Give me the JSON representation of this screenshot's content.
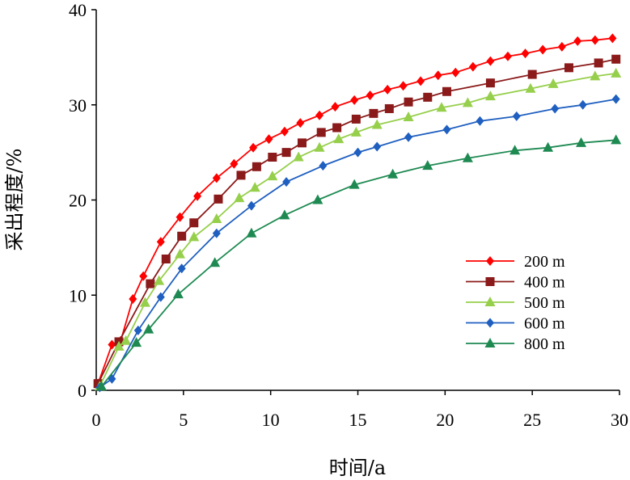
{
  "chart_data": {
    "type": "line",
    "xlabel": "时间/a",
    "ylabel": "采出程度/%",
    "xlim": [
      0,
      30
    ],
    "ylim": [
      0,
      40
    ],
    "xticks": [
      "0",
      "5",
      "10",
      "15",
      "20",
      "25",
      "30"
    ],
    "yticks": [
      "0",
      "10",
      "20",
      "30",
      "40"
    ],
    "grid": false,
    "legend_position": "right",
    "series": [
      {
        "name": "200 m",
        "color": "#ff0000",
        "marker": "diamond",
        "points": [
          [
            0.1,
            0.7
          ],
          [
            0.9,
            4.8
          ],
          [
            1.4,
            5.2
          ],
          [
            2.1,
            9.6
          ],
          [
            2.7,
            12.0
          ],
          [
            3.7,
            15.6
          ],
          [
            4.8,
            18.2
          ],
          [
            5.8,
            20.4
          ],
          [
            6.9,
            22.3
          ],
          [
            7.9,
            23.8
          ],
          [
            9.0,
            25.5
          ],
          [
            9.9,
            26.4
          ],
          [
            10.8,
            27.2
          ],
          [
            11.7,
            28.1
          ],
          [
            12.8,
            28.9
          ],
          [
            13.7,
            29.8
          ],
          [
            14.8,
            30.5
          ],
          [
            15.7,
            31.0
          ],
          [
            16.7,
            31.6
          ],
          [
            17.6,
            32.0
          ],
          [
            18.6,
            32.5
          ],
          [
            19.6,
            33.1
          ],
          [
            20.6,
            33.4
          ],
          [
            21.6,
            34.0
          ],
          [
            22.6,
            34.6
          ],
          [
            23.6,
            35.1
          ],
          [
            24.6,
            35.4
          ],
          [
            25.6,
            35.8
          ],
          [
            26.7,
            36.1
          ],
          [
            27.6,
            36.7
          ],
          [
            28.6,
            36.8
          ],
          [
            29.6,
            37.0
          ]
        ]
      },
      {
        "name": "400 m",
        "color": "#8b1a1a",
        "marker": "square",
        "points": [
          [
            0.1,
            0.7
          ],
          [
            1.3,
            5.1
          ],
          [
            3.1,
            11.2
          ],
          [
            4.0,
            13.8
          ],
          [
            4.9,
            16.2
          ],
          [
            5.6,
            17.6
          ],
          [
            7.0,
            20.1
          ],
          [
            8.3,
            22.6
          ],
          [
            9.2,
            23.5
          ],
          [
            10.1,
            24.5
          ],
          [
            10.9,
            25.0
          ],
          [
            11.8,
            26.0
          ],
          [
            12.9,
            27.1
          ],
          [
            13.8,
            27.6
          ],
          [
            14.9,
            28.5
          ],
          [
            15.9,
            29.1
          ],
          [
            16.8,
            29.6
          ],
          [
            17.9,
            30.3
          ],
          [
            19.0,
            30.8
          ],
          [
            20.1,
            31.4
          ],
          [
            22.6,
            32.3
          ],
          [
            25.0,
            33.2
          ],
          [
            27.1,
            33.9
          ],
          [
            28.8,
            34.4
          ],
          [
            29.8,
            34.8
          ]
        ]
      },
      {
        "name": "500 m",
        "color": "#96cf4b",
        "marker": "triangle",
        "points": [
          [
            0.2,
            0.4
          ],
          [
            1.3,
            4.6
          ],
          [
            1.7,
            5.2
          ],
          [
            2.8,
            9.2
          ],
          [
            3.6,
            11.5
          ],
          [
            4.8,
            14.3
          ],
          [
            5.6,
            16.1
          ],
          [
            6.9,
            18.0
          ],
          [
            8.2,
            20.2
          ],
          [
            9.1,
            21.3
          ],
          [
            10.1,
            22.5
          ],
          [
            11.6,
            24.5
          ],
          [
            12.8,
            25.5
          ],
          [
            13.9,
            26.4
          ],
          [
            14.9,
            27.1
          ],
          [
            16.1,
            27.9
          ],
          [
            17.9,
            28.7
          ],
          [
            19.8,
            29.7
          ],
          [
            21.3,
            30.2
          ],
          [
            22.6,
            30.9
          ],
          [
            24.9,
            31.7
          ],
          [
            26.2,
            32.2
          ],
          [
            28.6,
            33.0
          ],
          [
            29.8,
            33.3
          ]
        ]
      },
      {
        "name": "600 m",
        "color": "#1f5fc0",
        "marker": "diamond",
        "points": [
          [
            0.2,
            0.3
          ],
          [
            0.9,
            1.2
          ],
          [
            2.4,
            6.3
          ],
          [
            3.7,
            9.8
          ],
          [
            4.9,
            12.8
          ],
          [
            6.9,
            16.5
          ],
          [
            8.9,
            19.4
          ],
          [
            10.9,
            21.9
          ],
          [
            13.0,
            23.6
          ],
          [
            15.0,
            25.0
          ],
          [
            16.1,
            25.6
          ],
          [
            17.9,
            26.6
          ],
          [
            20.1,
            27.4
          ],
          [
            22.0,
            28.3
          ],
          [
            24.1,
            28.8
          ],
          [
            26.3,
            29.6
          ],
          [
            27.9,
            30.0
          ],
          [
            29.8,
            30.6
          ]
        ]
      },
      {
        "name": "800 m",
        "color": "#1e8a52",
        "marker": "triangle",
        "points": [
          [
            0.3,
            0.4
          ],
          [
            2.3,
            5.0
          ],
          [
            3.0,
            6.4
          ],
          [
            4.7,
            10.1
          ],
          [
            6.8,
            13.4
          ],
          [
            8.9,
            16.5
          ],
          [
            10.8,
            18.4
          ],
          [
            12.7,
            20.0
          ],
          [
            14.8,
            21.6
          ],
          [
            17.0,
            22.7
          ],
          [
            19.0,
            23.6
          ],
          [
            21.3,
            24.4
          ],
          [
            24.0,
            25.2
          ],
          [
            25.9,
            25.5
          ],
          [
            27.8,
            26.0
          ],
          [
            29.8,
            26.3
          ]
        ]
      }
    ]
  }
}
